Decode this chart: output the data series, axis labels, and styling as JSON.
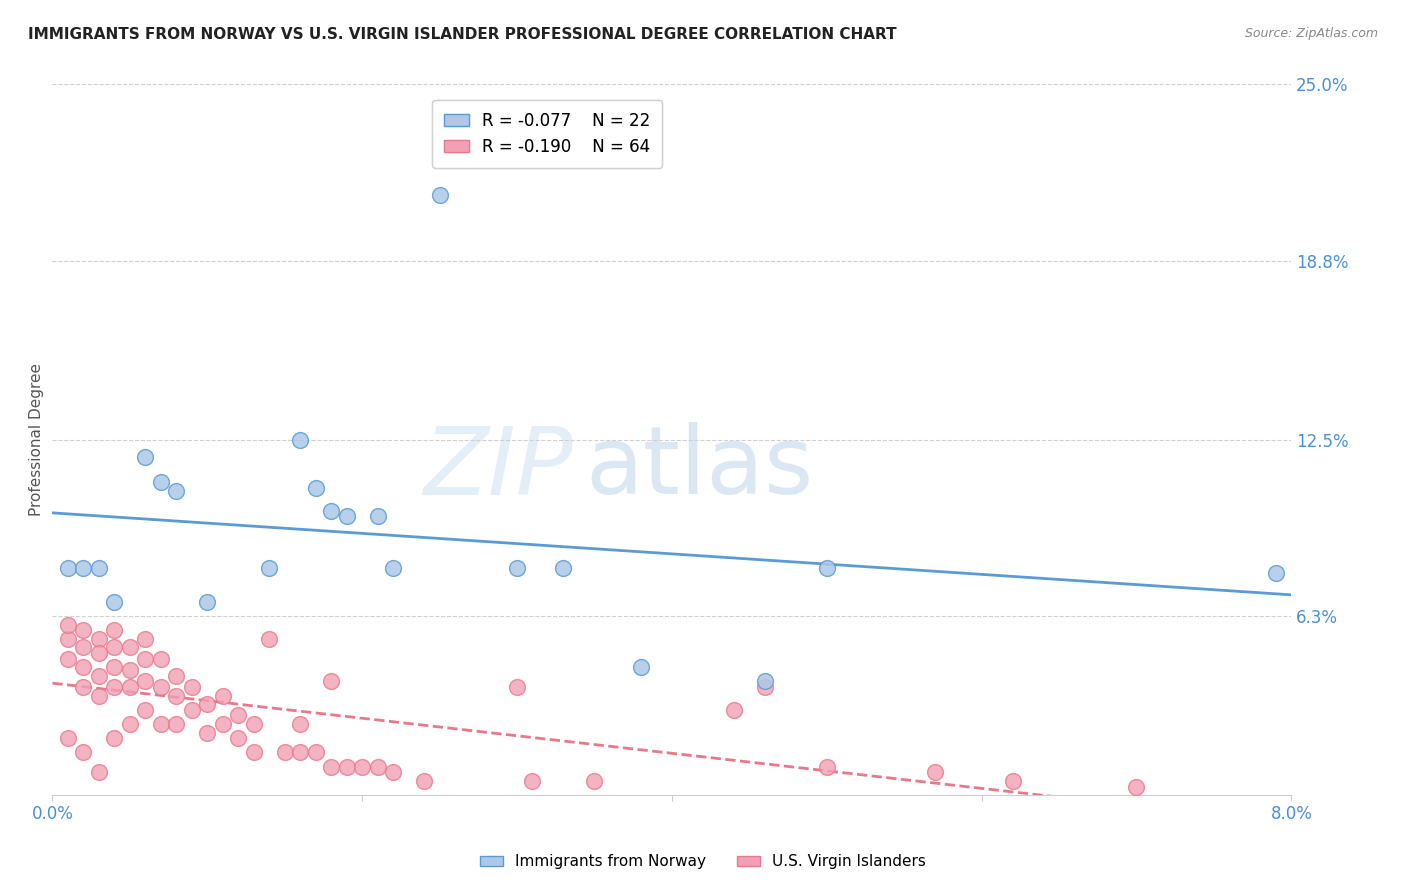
{
  "title": "IMMIGRANTS FROM NORWAY VS U.S. VIRGIN ISLANDER PROFESSIONAL DEGREE CORRELATION CHART",
  "source": "Source: ZipAtlas.com",
  "ylabel": "Professional Degree",
  "xlim": [
    0.0,
    0.08
  ],
  "ylim": [
    0.0,
    0.25
  ],
  "xtick_labels": [
    "0.0%",
    "",
    "",
    "",
    "8.0%"
  ],
  "xtick_values": [
    0.0,
    0.02,
    0.04,
    0.06,
    0.08
  ],
  "ytick_labels_right": [
    "6.3%",
    "12.5%",
    "18.8%",
    "25.0%"
  ],
  "ytick_values_right": [
    0.063,
    0.125,
    0.188,
    0.25
  ],
  "norway_R": -0.077,
  "norway_N": 22,
  "virgin_R": -0.19,
  "virgin_N": 64,
  "norway_color": "#adc8e8",
  "virgin_color": "#f2a0b5",
  "norway_line_color": "#5b9bd5",
  "virgin_line_color": "#e8788a",
  "watermark": "ZIPatlas",
  "norway_x": [
    0.001,
    0.002,
    0.003,
    0.004,
    0.006,
    0.007,
    0.008,
    0.01,
    0.014,
    0.016,
    0.017,
    0.018,
    0.019,
    0.021,
    0.022,
    0.025,
    0.03,
    0.033,
    0.038,
    0.046,
    0.05,
    0.079
  ],
  "norway_y": [
    0.08,
    0.08,
    0.08,
    0.068,
    0.119,
    0.11,
    0.107,
    0.068,
    0.08,
    0.125,
    0.108,
    0.1,
    0.098,
    0.098,
    0.08,
    0.211,
    0.08,
    0.08,
    0.045,
    0.04,
    0.08,
    0.078
  ],
  "virgin_x": [
    0.001,
    0.001,
    0.001,
    0.001,
    0.002,
    0.002,
    0.002,
    0.002,
    0.002,
    0.003,
    0.003,
    0.003,
    0.003,
    0.003,
    0.004,
    0.004,
    0.004,
    0.004,
    0.004,
    0.005,
    0.005,
    0.005,
    0.005,
    0.006,
    0.006,
    0.006,
    0.006,
    0.007,
    0.007,
    0.007,
    0.008,
    0.008,
    0.008,
    0.009,
    0.009,
    0.01,
    0.01,
    0.011,
    0.011,
    0.012,
    0.012,
    0.013,
    0.013,
    0.014,
    0.015,
    0.016,
    0.016,
    0.017,
    0.018,
    0.018,
    0.019,
    0.02,
    0.021,
    0.022,
    0.024,
    0.03,
    0.031,
    0.035,
    0.044,
    0.046,
    0.05,
    0.057,
    0.062,
    0.07
  ],
  "virgin_y": [
    0.055,
    0.06,
    0.048,
    0.02,
    0.058,
    0.052,
    0.045,
    0.038,
    0.015,
    0.055,
    0.05,
    0.042,
    0.035,
    0.008,
    0.058,
    0.052,
    0.045,
    0.038,
    0.02,
    0.052,
    0.044,
    0.038,
    0.025,
    0.055,
    0.048,
    0.04,
    0.03,
    0.048,
    0.038,
    0.025,
    0.042,
    0.035,
    0.025,
    0.038,
    0.03,
    0.032,
    0.022,
    0.035,
    0.025,
    0.028,
    0.02,
    0.025,
    0.015,
    0.055,
    0.015,
    0.025,
    0.015,
    0.015,
    0.04,
    0.01,
    0.01,
    0.01,
    0.01,
    0.008,
    0.005,
    0.038,
    0.005,
    0.005,
    0.03,
    0.038,
    0.01,
    0.008,
    0.005,
    0.003
  ]
}
